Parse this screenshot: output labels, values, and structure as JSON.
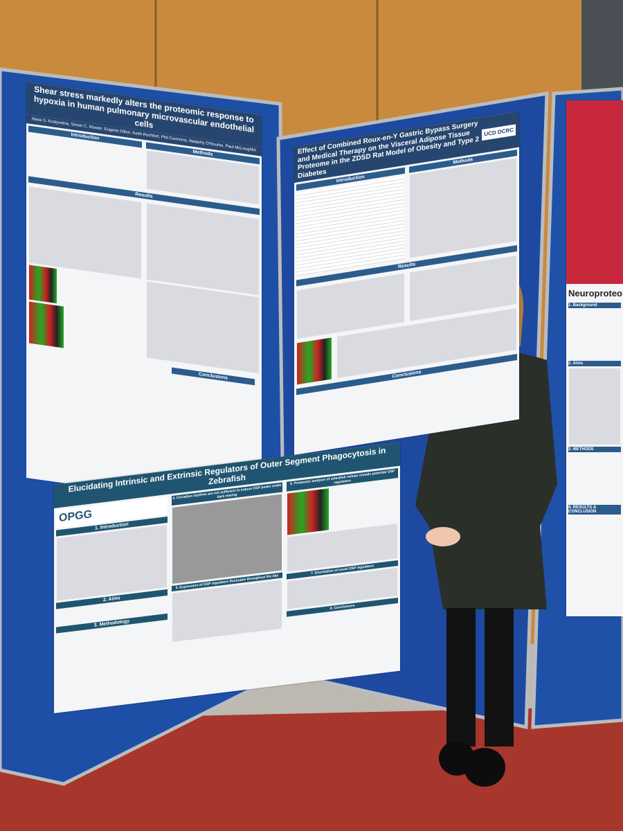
{
  "posters": [
    {
      "title": "Shear stress markedly alters the proteomic response to hypoxia in human pulmonary microvascular endothelial cells",
      "authors": "Iliana S. Kostyunina, Simon C. Rowan, Eugene Dillon, Keith Rochfort, Phil Cummins, Malachy O'Rourke, Paul McLoughlin",
      "sections": [
        "Introduction",
        "Methods",
        "Results",
        "Conclusions"
      ]
    },
    {
      "title": "Effect of Combined Roux-en-Y Gastric Bypass Surgery and Medical Therapy on the Visceral Adipose Tissue Proteome in the ZDSD Rat Model of Obesity and Type 2 Diabetes",
      "logo": "UCD DCRC",
      "sections": [
        "Introduction",
        "Methods",
        "Results",
        "Conclusions"
      ]
    },
    {
      "title": "Elucidating Intrinsic and Extrinsic Regulators of Outer Segment Phagocytosis in Zebrafish",
      "logo": "OPGG",
      "sections": [
        "1. Introduction",
        "2. Aims",
        "3. Methodology",
        "4. Circadian rhythms are not sufficient to induce OSP peaks under dark rearing",
        "5. Expression of OSP regulators fluctuates throughout the day",
        "6. Proteomic analysis of zebrafish retinas reveals potential OSP regulators",
        "7. Elucidation of novel OSP regulators",
        "8. Conclusions"
      ]
    },
    {
      "title": "Neuroproteomic pr",
      "sections": [
        "1. Background",
        "2. Aims",
        "3. METHODS",
        "4. RESULTS & CONCLUSION"
      ]
    }
  ]
}
